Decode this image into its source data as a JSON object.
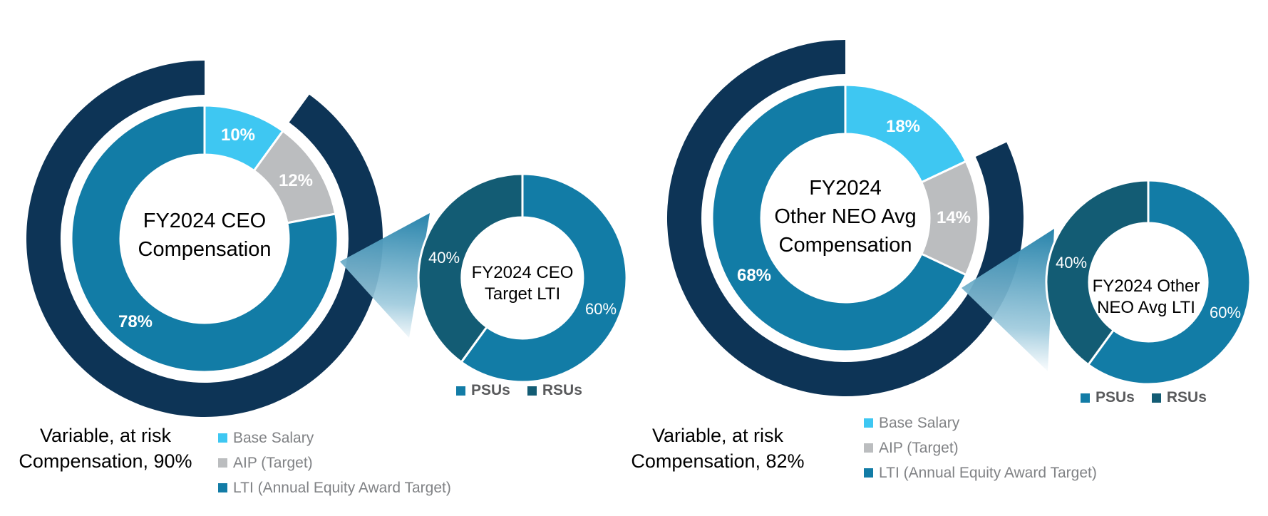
{
  "colors": {
    "navy": "#0D3456",
    "teal": "#127CA6",
    "dark_teal": "#135C74",
    "light_blue": "#3EC7F2",
    "gray": "#BBBDBF",
    "legend_text": "#808285",
    "small_legend_text": "#595A5C",
    "pct_label_text": "#FFFFFF",
    "title_text": "#000000"
  },
  "chart_data": [
    {
      "type": "donut",
      "name": "fy2024-ceo-compensation",
      "title_lines": [
        "FY2024 CEO",
        "Compensation"
      ],
      "slices": [
        {
          "label": "Base Salary",
          "value": 10,
          "display": "10%",
          "color": "light_blue"
        },
        {
          "label": "AIP (Target)",
          "value": 12,
          "display": "12%",
          "color": "gray"
        },
        {
          "label": "LTI (Annual Equity Award Target)",
          "value": 78,
          "display": "78%",
          "color": "teal"
        }
      ],
      "outer_ring": {
        "label": "Variable, at risk Compensation",
        "value": 90,
        "color": "navy"
      },
      "caption_lines": [
        "Variable, at risk",
        "Compensation, 90%"
      ],
      "legend": [
        {
          "label": "Base Salary",
          "color": "light_blue"
        },
        {
          "label": "AIP (Target)",
          "color": "gray"
        },
        {
          "label": "LTI (Annual Equity Award Target)",
          "color": "teal"
        }
      ]
    },
    {
      "type": "donut",
      "name": "fy2024-ceo-target-lti",
      "title_lines": [
        "FY2024 CEO",
        "Target LTI"
      ],
      "slices": [
        {
          "label": "PSUs",
          "value": 60,
          "display": "60%",
          "color": "teal"
        },
        {
          "label": "RSUs",
          "value": 40,
          "display": "40%",
          "color": "dark_teal"
        }
      ],
      "legend": [
        {
          "label": "PSUs",
          "color": "teal"
        },
        {
          "label": "RSUs",
          "color": "dark_teal"
        }
      ]
    },
    {
      "type": "donut",
      "name": "fy2024-other-neo-avg-compensation",
      "title_lines": [
        "FY2024",
        "Other NEO Avg",
        "Compensation"
      ],
      "slices": [
        {
          "label": "Base Salary",
          "value": 18,
          "display": "18%",
          "color": "light_blue"
        },
        {
          "label": "AIP (Target)",
          "value": 14,
          "display": "14%",
          "color": "gray"
        },
        {
          "label": "LTI (Annual Equity Award Target)",
          "value": 68,
          "display": "68%",
          "color": "teal"
        }
      ],
      "outer_ring": {
        "label": "Variable, at risk Compensation",
        "value": 82,
        "color": "navy"
      },
      "caption_lines": [
        "Variable, at risk",
        "Compensation, 82%"
      ],
      "legend": [
        {
          "label": "Base Salary",
          "color": "light_blue"
        },
        {
          "label": "AIP (Target)",
          "color": "gray"
        },
        {
          "label": "LTI (Annual Equity Award Target)",
          "color": "teal"
        }
      ]
    },
    {
      "type": "donut",
      "name": "fy2024-other-neo-avg-lti",
      "title_lines": [
        "FY2024 Other",
        "NEO Avg LTI"
      ],
      "slices": [
        {
          "label": "PSUs",
          "value": 60,
          "display": "60%",
          "color": "teal"
        },
        {
          "label": "RSUs",
          "value": 40,
          "display": "40%",
          "color": "dark_teal"
        }
      ],
      "legend": [
        {
          "label": "PSUs",
          "color": "teal"
        },
        {
          "label": "RSUs",
          "color": "dark_teal"
        }
      ]
    }
  ]
}
